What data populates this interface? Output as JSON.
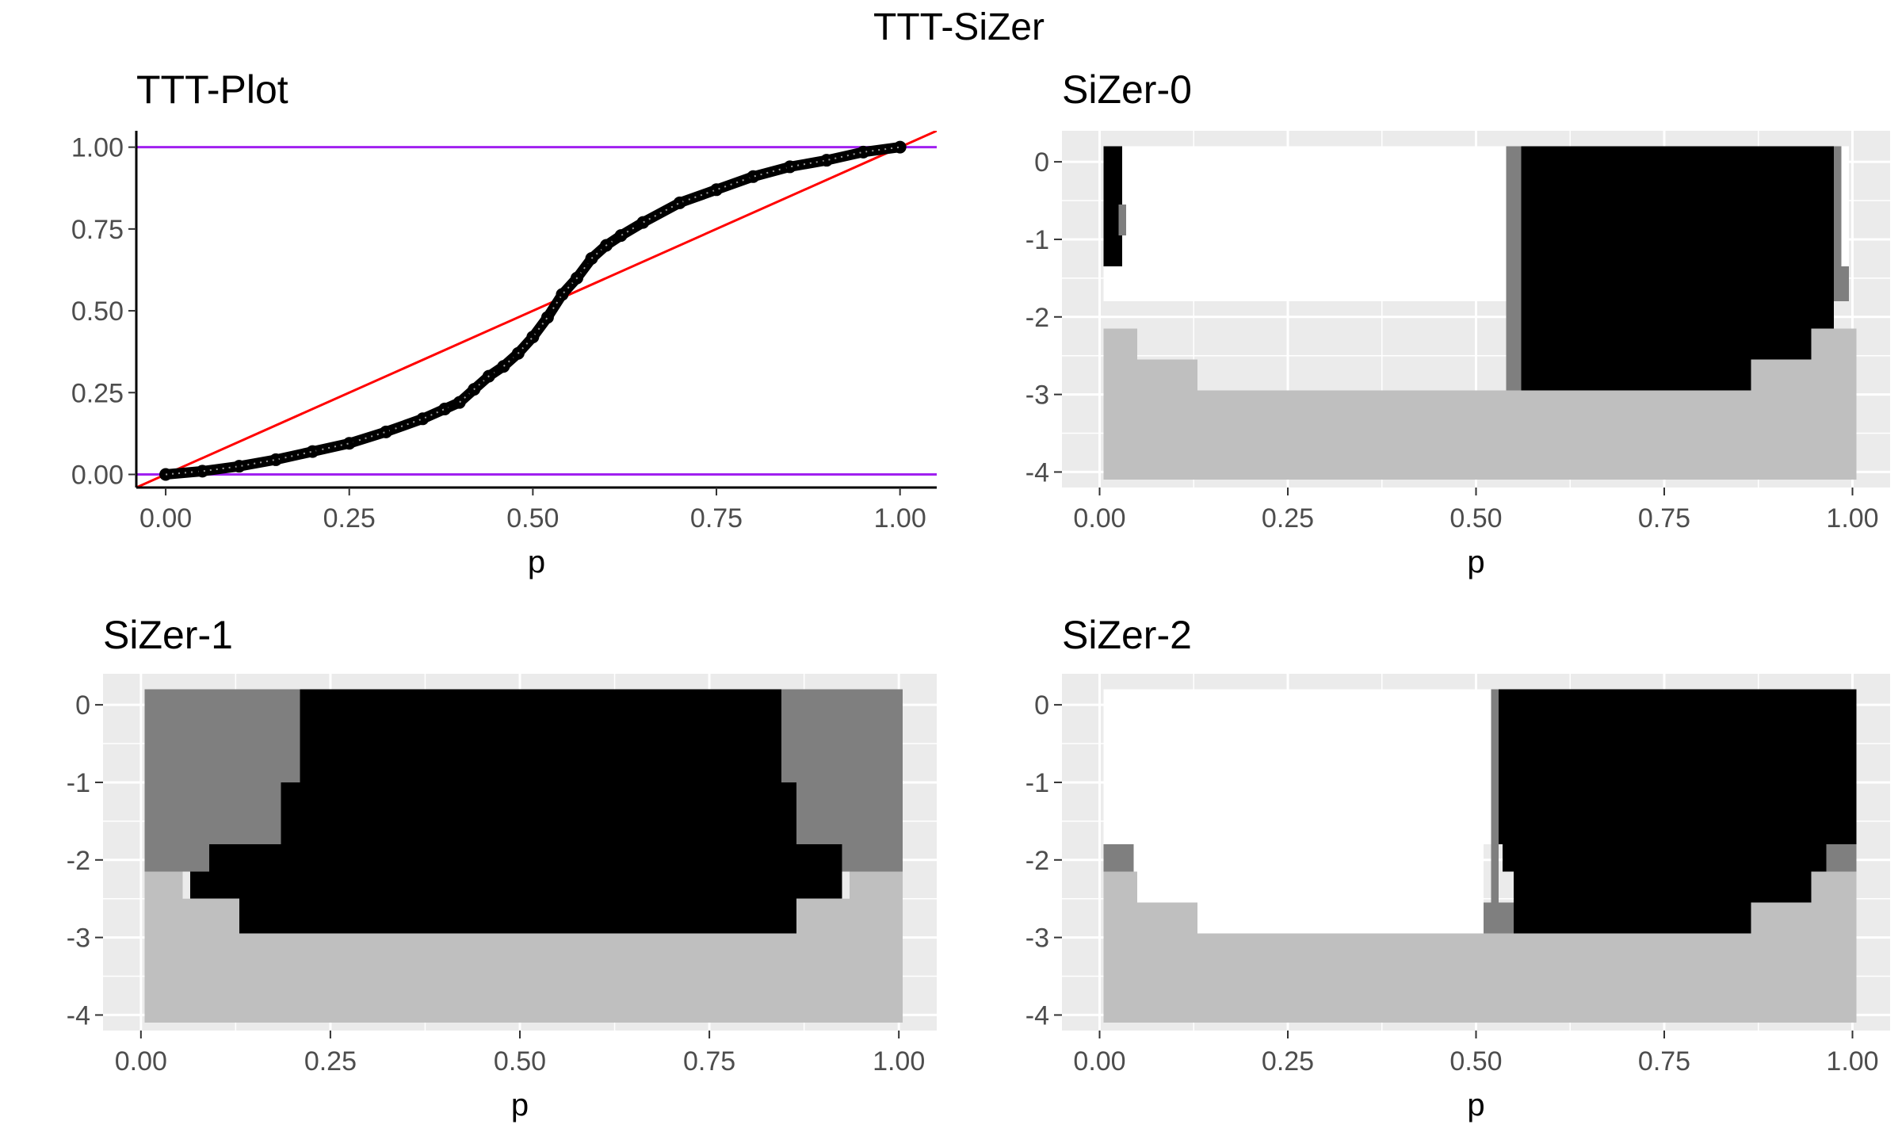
{
  "figure_title": "TTT-SiZer",
  "colors": {
    "panel_bg": "#ebebeb",
    "grid": "#ffffff",
    "sig_increase": "#000000",
    "not_significant": "#7f7f7f",
    "sig_decrease": "#ffffff",
    "sparse": "#bfbfbf",
    "ttt_points": "#000000",
    "diagonal": "#ff0000",
    "bounds": "#a020f0"
  },
  "chart_data": [
    {
      "type": "scatter",
      "title": "TTT-Plot",
      "xlabel": "p",
      "ylabel": "",
      "xlim": [
        -0.04,
        1.05
      ],
      "ylim": [
        -0.04,
        1.05
      ],
      "xticks": [
        "0.00",
        "0.25",
        "0.50",
        "0.75",
        "1.00"
      ],
      "yticks": [
        "0.00",
        "0.25",
        "0.50",
        "0.75",
        "1.00"
      ],
      "grid": false,
      "series": [
        {
          "kind": "points",
          "x": [
            0.0,
            0.05,
            0.1,
            0.15,
            0.2,
            0.25,
            0.3,
            0.35,
            0.38,
            0.4,
            0.42,
            0.44,
            0.46,
            0.48,
            0.5,
            0.52,
            0.54,
            0.56,
            0.58,
            0.6,
            0.62,
            0.65,
            0.7,
            0.75,
            0.8,
            0.85,
            0.9,
            0.95,
            1.0
          ],
          "y": [
            0.0,
            0.01,
            0.025,
            0.045,
            0.07,
            0.095,
            0.13,
            0.17,
            0.2,
            0.22,
            0.26,
            0.3,
            0.33,
            0.37,
            0.42,
            0.48,
            0.55,
            0.6,
            0.66,
            0.7,
            0.73,
            0.77,
            0.83,
            0.87,
            0.91,
            0.94,
            0.96,
            0.985,
            1.0
          ]
        },
        {
          "kind": "line",
          "x": [
            -0.04,
            1.05
          ],
          "y": [
            -0.04,
            1.05
          ]
        },
        {
          "kind": "hline",
          "y": 0
        },
        {
          "kind": "hline",
          "y": 1
        }
      ]
    },
    {
      "type": "heatmap",
      "title": "SiZer-0",
      "xlabel": "p",
      "ylabel": "",
      "xlim": [
        -0.05,
        1.05
      ],
      "ylim": [
        -4.2,
        0.4
      ],
      "xticks": [
        0,
        0.25,
        0.5,
        0.75,
        1
      ],
      "xtick_labels": [
        "0.00",
        "0.25",
        "0.50",
        "0.75",
        "1.00"
      ],
      "yticks": [
        -4,
        -3,
        -2,
        -1,
        0
      ],
      "ytick_labels": [
        "-4",
        "-3",
        "-2",
        "-1",
        "0"
      ],
      "cells": [
        [
          0.005,
          0.995,
          -1.8,
          0.2,
          "sig_decrease"
        ],
        [
          0.005,
          0.03,
          -1.35,
          0.2,
          "sig_increase"
        ],
        [
          0.025,
          0.035,
          -0.95,
          -0.55,
          "not_significant"
        ],
        [
          0.54,
          0.56,
          -2.95,
          0.2,
          "not_significant"
        ],
        [
          0.56,
          0.975,
          -2.95,
          0.2,
          "sig_increase"
        ],
        [
          0.975,
          0.985,
          -1.35,
          0.2,
          "not_significant"
        ],
        [
          0.975,
          0.995,
          -1.8,
          -1.35,
          "not_significant"
        ],
        [
          0.005,
          1.005,
          -4.1,
          -2.95,
          "sparse"
        ],
        [
          0.005,
          0.05,
          -2.95,
          -2.15,
          "sparse"
        ],
        [
          0.05,
          0.13,
          -2.95,
          -2.55,
          "sparse"
        ],
        [
          0.865,
          0.945,
          -2.95,
          -2.55,
          "sparse"
        ],
        [
          0.945,
          1.005,
          -2.95,
          -2.15,
          "sparse"
        ]
      ]
    },
    {
      "type": "heatmap",
      "title": "SiZer-1",
      "xlabel": "p",
      "ylabel": "",
      "xlim": [
        -0.05,
        1.05
      ],
      "ylim": [
        -4.2,
        0.4
      ],
      "xticks": [
        0,
        0.25,
        0.5,
        0.75,
        1
      ],
      "xtick_labels": [
        "0.00",
        "0.25",
        "0.50",
        "0.75",
        "1.00"
      ],
      "yticks": [
        -4,
        -3,
        -2,
        -1,
        0
      ],
      "ytick_labels": [
        "-4",
        "-3",
        "-2",
        "-1",
        "0"
      ],
      "cells": [
        [
          0.005,
          1.005,
          -2.15,
          0.2,
          "not_significant"
        ],
        [
          0.21,
          0.845,
          -1.0,
          0.2,
          "sig_increase"
        ],
        [
          0.185,
          0.865,
          -1.8,
          -1.0,
          "sig_increase"
        ],
        [
          0.09,
          0.925,
          -2.15,
          -1.8,
          "sig_increase"
        ],
        [
          0.065,
          0.925,
          -2.5,
          -2.15,
          "sig_increase"
        ],
        [
          0.13,
          0.865,
          -2.95,
          -2.5,
          "sig_increase"
        ],
        [
          0.005,
          1.005,
          -4.1,
          -2.95,
          "sparse"
        ],
        [
          0.005,
          0.055,
          -2.95,
          -2.15,
          "sparse"
        ],
        [
          0.055,
          0.13,
          -2.95,
          -2.5,
          "sparse"
        ],
        [
          0.865,
          0.935,
          -2.95,
          -2.5,
          "sparse"
        ],
        [
          0.935,
          1.005,
          -2.95,
          -2.15,
          "sparse"
        ]
      ]
    },
    {
      "type": "heatmap",
      "title": "SiZer-2",
      "xlabel": "p",
      "ylabel": "",
      "xlim": [
        -0.05,
        1.05
      ],
      "ylim": [
        -4.2,
        0.4
      ],
      "xticks": [
        0,
        0.25,
        0.5,
        0.75,
        1
      ],
      "xtick_labels": [
        "0.00",
        "0.25",
        "0.50",
        "0.75",
        "1.00"
      ],
      "yticks": [
        -4,
        -3,
        -2,
        -1,
        0
      ],
      "ytick_labels": [
        "-4",
        "-3",
        "-2",
        "-1",
        "0"
      ],
      "cells": [
        [
          0.005,
          1.005,
          -1.8,
          0.2,
          "sig_decrease"
        ],
        [
          0.52,
          0.53,
          -2.55,
          0.2,
          "not_significant"
        ],
        [
          0.51,
          0.55,
          -2.95,
          -2.55,
          "not_significant"
        ],
        [
          0.53,
          1.005,
          -1.8,
          0.2,
          "sig_increase"
        ],
        [
          0.535,
          0.965,
          -2.15,
          -1.8,
          "sig_increase"
        ],
        [
          0.55,
          0.945,
          -2.95,
          -2.15,
          "sig_increase"
        ],
        [
          0.965,
          1.005,
          -2.15,
          -1.8,
          "not_significant"
        ],
        [
          0.005,
          0.045,
          -2.15,
          -1.8,
          "not_significant"
        ],
        [
          0.045,
          0.51,
          -2.95,
          -1.8,
          "sig_decrease"
        ],
        [
          0.005,
          1.005,
          -4.1,
          -2.95,
          "sparse"
        ],
        [
          0.005,
          0.05,
          -2.95,
          -2.15,
          "sparse"
        ],
        [
          0.05,
          0.13,
          -2.95,
          -2.55,
          "sparse"
        ],
        [
          0.865,
          0.945,
          -2.95,
          -2.55,
          "sparse"
        ],
        [
          0.945,
          1.005,
          -2.95,
          -2.15,
          "sparse"
        ]
      ]
    }
  ]
}
